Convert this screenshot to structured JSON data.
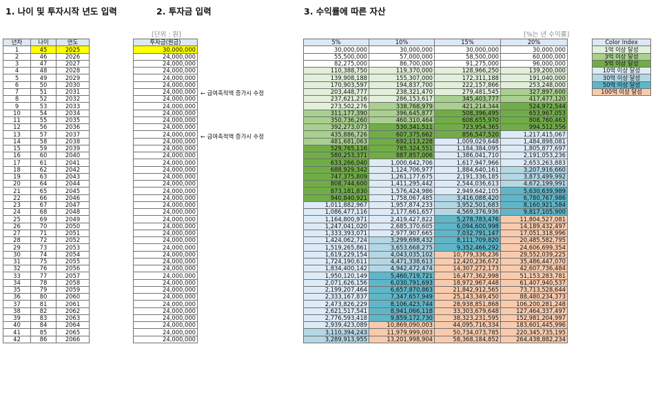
{
  "sections": {
    "s1": "1. 나이 및 투자시작 년도 입력",
    "s2": "2. 투자금 입력",
    "s3": "3. 수익률에 따른 자산"
  },
  "unit_label": "[단위 : 원]",
  "rate_note": "[%는 년 수익률]",
  "table1": {
    "headers": [
      "년차",
      "나이",
      "연도"
    ]
  },
  "table2": {
    "header": "투자금(원금)"
  },
  "table3": {
    "headers": [
      "5%",
      "10%",
      "15%",
      "20%"
    ]
  },
  "notes": [
    "← 급여축적액 증가시 수정",
    "← 급여축적액 증가시 수정"
  ],
  "legend": {
    "title": "Color Index",
    "items": [
      {
        "label": "1억 이상 달성",
        "color": "#e2efda"
      },
      {
        "label": "3억 이상 달성",
        "color": "#a9d08e"
      },
      {
        "label": "5억 이상 달성",
        "color": "#70ad47"
      },
      {
        "label": "10억 이상 달성",
        "color": "#ddebf7"
      },
      {
        "label": "30억 이상 달성",
        "color": "#b4d7e6"
      },
      {
        "label": "50억 이상 달성",
        "color": "#5fb6c9"
      },
      {
        "label": "100억 이상 달성",
        "color": "#f8cbad"
      }
    ]
  },
  "rows": [
    {
      "year": "1",
      "age": "45",
      "calendar": "2025",
      "investment": "30,000,000",
      "v5": "30,000,000",
      "v10": "30,000,000",
      "v15": "30,000,000",
      "v20": "30,000,000"
    },
    {
      "year": "2",
      "age": "46",
      "calendar": "2026",
      "investment": "24,000,000",
      "v5": "55,500,000",
      "v10": "57,000,000",
      "v15": "58,500,000",
      "v20": "60,000,000"
    },
    {
      "year": "3",
      "age": "47",
      "calendar": "2027",
      "investment": "24,000,000",
      "v5": "82,275,000",
      "v10": "86,700,000",
      "v15": "91,275,000",
      "v20": "96,000,000"
    },
    {
      "year": "4",
      "age": "48",
      "calendar": "2028",
      "investment": "24,000,000",
      "v5": "110,388,750",
      "v10": "119,370,000",
      "v15": "128,966,250",
      "v20": "139,200,000"
    },
    {
      "year": "5",
      "age": "49",
      "calendar": "2029",
      "investment": "24,000,000",
      "v5": "139,908,188",
      "v10": "155,307,000",
      "v15": "172,311,188",
      "v20": "191,040,000"
    },
    {
      "year": "6",
      "age": "50",
      "calendar": "2030",
      "investment": "24,000,000",
      "v5": "170,903,597",
      "v10": "194,837,700",
      "v15": "222,157,866",
      "v20": "253,248,000"
    },
    {
      "year": "7",
      "age": "51",
      "calendar": "2031",
      "investment": "24,000,000",
      "v5": "203,448,777",
      "v10": "238,321,470",
      "v15": "279,481,545",
      "v20": "327,897,600"
    },
    {
      "year": "8",
      "age": "52",
      "calendar": "2032",
      "investment": "24,000,000",
      "v5": "237,621,216",
      "v10": "286,153,617",
      "v15": "345,403,777",
      "v20": "417,477,120"
    },
    {
      "year": "9",
      "age": "53",
      "calendar": "2033",
      "investment": "24,000,000",
      "v5": "273,502,276",
      "v10": "338,768,979",
      "v15": "421,214,344",
      "v20": "524,972,544"
    },
    {
      "year": "10",
      "age": "54",
      "calendar": "2034",
      "investment": "24,000,000",
      "v5": "311,177,390",
      "v10": "396,645,877",
      "v15": "508,396,495",
      "v20": "653,967,053"
    },
    {
      "year": "11",
      "age": "55",
      "calendar": "2035",
      "investment": "24,000,000",
      "v5": "350,736,260",
      "v10": "460,310,464",
      "v15": "608,655,970",
      "v20": "808,760,463"
    },
    {
      "year": "12",
      "age": "56",
      "calendar": "2036",
      "investment": "24,000,000",
      "v5": "392,273,073",
      "v10": "530,341,511",
      "v15": "723,954,365",
      "v20": "994,512,556"
    },
    {
      "year": "13",
      "age": "57",
      "calendar": "2037",
      "investment": "24,000,000",
      "v5": "435,886,726",
      "v10": "607,375,662",
      "v15": "856,547,520",
      "v20": "1,217,415,067"
    },
    {
      "year": "14",
      "age": "58",
      "calendar": "2038",
      "investment": "24,000,000",
      "v5": "481,681,063",
      "v10": "692,113,228",
      "v15": "1,009,029,648",
      "v20": "1,484,898,081"
    },
    {
      "year": "15",
      "age": "59",
      "calendar": "2039",
      "investment": "24,000,000",
      "v5": "529,765,116",
      "v10": "785,324,551",
      "v15": "1,184,384,095",
      "v20": "1,805,877,697"
    },
    {
      "year": "16",
      "age": "60",
      "calendar": "2040",
      "investment": "24,000,000",
      "v5": "580,253,371",
      "v10": "887,857,006",
      "v15": "1,386,041,710",
      "v20": "2,191,053,236"
    },
    {
      "year": "17",
      "age": "61",
      "calendar": "2041",
      "investment": "24,000,000",
      "v5": "633,266,040",
      "v10": "1,000,642,706",
      "v15": "1,617,947,966",
      "v20": "2,653,263,883"
    },
    {
      "year": "18",
      "age": "62",
      "calendar": "2042",
      "investment": "24,000,000",
      "v5": "688,929,342",
      "v10": "1,124,706,977",
      "v15": "1,884,640,161",
      "v20": "3,207,916,660"
    },
    {
      "year": "19",
      "age": "63",
      "calendar": "2043",
      "investment": "24,000,000",
      "v5": "747,375,809",
      "v10": "1,261,177,675",
      "v15": "2,191,336,185",
      "v20": "3,873,499,992"
    },
    {
      "year": "20",
      "age": "64",
      "calendar": "2044",
      "investment": "24,000,000",
      "v5": "808,744,600",
      "v10": "1,411,295,442",
      "v15": "2,544,036,613",
      "v20": "4,672,199,991"
    },
    {
      "year": "21",
      "age": "65",
      "calendar": "2045",
      "investment": "24,000,000",
      "v5": "873,181,830",
      "v10": "1,576,424,986",
      "v15": "2,949,642,105",
      "v20": "5,630,639,989"
    },
    {
      "year": "22",
      "age": "66",
      "calendar": "2046",
      "investment": "24,000,000",
      "v5": "940,840,921",
      "v10": "1,758,067,485",
      "v15": "3,416,088,420",
      "v20": "6,780,767,986"
    },
    {
      "year": "23",
      "age": "67",
      "calendar": "2047",
      "investment": "24,000,000",
      "v5": "1,011,882,967",
      "v10": "1,957,874,233",
      "v15": "3,952,501,683",
      "v20": "8,160,921,584"
    },
    {
      "year": "24",
      "age": "68",
      "calendar": "2048",
      "investment": "24,000,000",
      "v5": "1,086,477,116",
      "v10": "2,177,661,657",
      "v15": "4,569,376,936",
      "v20": "9,817,105,900"
    },
    {
      "year": "25",
      "age": "69",
      "calendar": "2049",
      "investment": "24,000,000",
      "v5": "1,164,800,971",
      "v10": "2,419,427,822",
      "v15": "5,278,783,476",
      "v20": "11,804,527,081"
    },
    {
      "year": "26",
      "age": "70",
      "calendar": "2050",
      "investment": "24,000,000",
      "v5": "1,247,041,020",
      "v10": "2,685,370,605",
      "v15": "6,094,600,998",
      "v20": "14,189,432,497"
    },
    {
      "year": "27",
      "age": "71",
      "calendar": "2051",
      "investment": "24,000,000",
      "v5": "1,333,393,071",
      "v10": "2,977,907,665",
      "v15": "7,032,791,147",
      "v20": "17,051,318,996"
    },
    {
      "year": "28",
      "age": "72",
      "calendar": "2052",
      "investment": "24,000,000",
      "v5": "1,424,062,724",
      "v10": "3,299,698,432",
      "v15": "8,111,709,820",
      "v20": "20,485,582,795"
    },
    {
      "year": "29",
      "age": "73",
      "calendar": "2053",
      "investment": "24,000,000",
      "v5": "1,519,265,861",
      "v10": "3,653,668,275",
      "v15": "9,352,466,292",
      "v20": "24,606,699,354"
    },
    {
      "year": "30",
      "age": "74",
      "calendar": "2054",
      "investment": "24,000,000",
      "v5": "1,619,229,154",
      "v10": "4,043,035,102",
      "v15": "10,779,336,236",
      "v20": "29,552,039,225"
    },
    {
      "year": "31",
      "age": "75",
      "calendar": "2055",
      "investment": "24,000,000",
      "v5": "1,724,190,611",
      "v10": "4,471,338,613",
      "v15": "12,420,236,672",
      "v20": "35,486,447,070"
    },
    {
      "year": "32",
      "age": "76",
      "calendar": "2056",
      "investment": "24,000,000",
      "v5": "1,834,400,142",
      "v10": "4,942,472,474",
      "v15": "14,307,272,173",
      "v20": "42,607,736,484"
    },
    {
      "year": "33",
      "age": "77",
      "calendar": "2057",
      "investment": "24,000,000",
      "v5": "1,950,120,149",
      "v10": "5,460,719,721",
      "v15": "16,477,362,998",
      "v20": "51,153,283,781"
    },
    {
      "year": "34",
      "age": "78",
      "calendar": "2058",
      "investment": "24,000,000",
      "v5": "2,071,626,156",
      "v10": "6,030,791,693",
      "v15": "18,972,967,448",
      "v20": "61,407,940,537"
    },
    {
      "year": "35",
      "age": "79",
      "calendar": "2059",
      "investment": "24,000,000",
      "v5": "2,199,207,464",
      "v10": "6,657,870,863",
      "v15": "21,842,912,565",
      "v20": "73,713,528,644"
    },
    {
      "year": "36",
      "age": "80",
      "calendar": "2060",
      "investment": "24,000,000",
      "v5": "2,333,167,837",
      "v10": "7,347,657,949",
      "v15": "25,143,349,450",
      "v20": "88,480,234,373"
    },
    {
      "year": "37",
      "age": "81",
      "calendar": "2061",
      "investment": "24,000,000",
      "v5": "2,473,826,229",
      "v10": "8,106,423,744",
      "v15": "28,938,851,868",
      "v20": "106,200,281,248"
    },
    {
      "year": "38",
      "age": "82",
      "calendar": "2062",
      "investment": "24,000,000",
      "v5": "2,621,517,541",
      "v10": "8,941,066,118",
      "v15": "33,303,679,648",
      "v20": "127,464,337,497"
    },
    {
      "year": "39",
      "age": "83",
      "calendar": "2063",
      "investment": "24,000,000",
      "v5": "2,776,593,418",
      "v10": "9,859,172,730",
      "v15": "38,323,231,595",
      "v20": "152,981,204,997"
    },
    {
      "year": "40",
      "age": "84",
      "calendar": "2064",
      "investment": "24,000,000",
      "v5": "2,939,423,089",
      "v10": "10,869,090,003",
      "v15": "44,095,716,334",
      "v20": "183,601,445,996"
    },
    {
      "year": "41",
      "age": "85",
      "calendar": "2065",
      "investment": "24,000,000",
      "v5": "3,110,394,243",
      "v10": "11,979,999,003",
      "v15": "50,734,073,785",
      "v20": "220,345,735,195"
    },
    {
      "year": "42",
      "age": "86",
      "calendar": "2066",
      "investment": "24,000,000",
      "v5": "3,289,913,955",
      "v10": "13,201,998,904",
      "v15": "58,368,184,852",
      "v20": "264,438,882,234"
    }
  ]
}
